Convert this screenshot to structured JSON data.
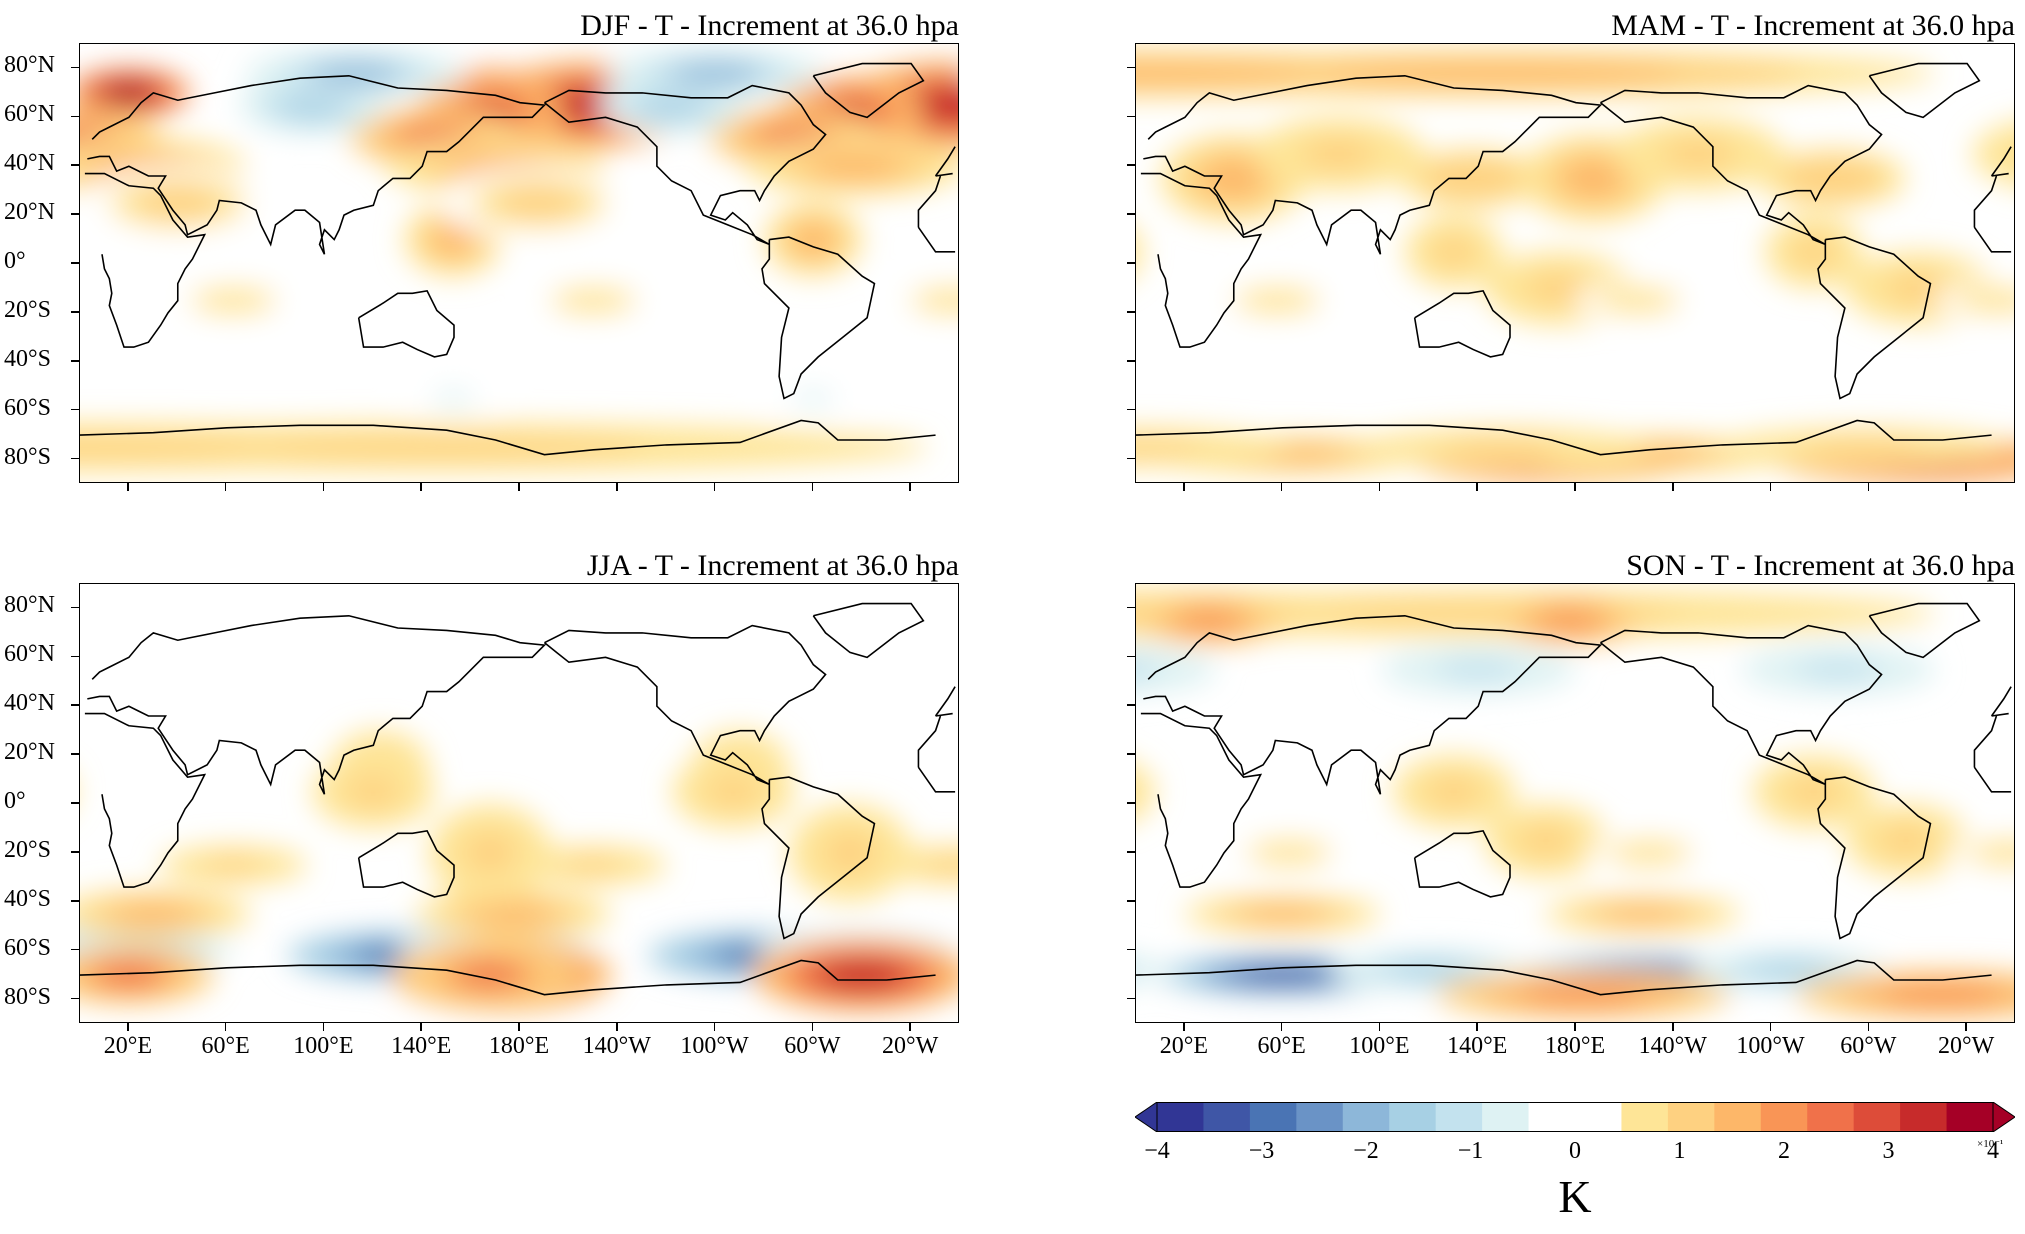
{
  "panels": [
    {
      "id": "djf",
      "title": "DJF - T - Increment at 36.0 hpa",
      "show_x": false,
      "show_y": true,
      "blobs": [
        {
          "lon": -5,
          "lat": 65,
          "rx": 45,
          "ry": 18,
          "v": 3.5
        },
        {
          "lon": 20,
          "lat": 70,
          "rx": 25,
          "ry": 10,
          "v": 4
        },
        {
          "lon": -45,
          "lat": 62,
          "rx": 30,
          "ry": 15,
          "v": 3
        },
        {
          "lon": 145,
          "lat": 52,
          "rx": 35,
          "ry": 12,
          "v": 2.5
        },
        {
          "lon": 170,
          "lat": 40,
          "rx": 45,
          "ry": 12,
          "v": 1.5
        },
        {
          "lon": 95,
          "lat": 65,
          "rx": 30,
          "ry": 12,
          "v": -1.5
        },
        {
          "lon": -100,
          "lat": 78,
          "rx": 45,
          "ry": 10,
          "v": -1.8
        },
        {
          "lon": -60,
          "lat": 10,
          "rx": 20,
          "ry": 15,
          "v": 1.5
        },
        {
          "lon": -150,
          "lat": -15,
          "rx": 25,
          "ry": 8,
          "v": 0.8
        },
        {
          "lon": 40,
          "lat": 25,
          "rx": 40,
          "ry": 15,
          "v": 0.9
        },
        {
          "lon": 0,
          "lat": -75,
          "rx": 200,
          "ry": 10,
          "v": 1
        },
        {
          "lon": -60,
          "lat": -55,
          "rx": 20,
          "ry": 8,
          "v": -0.5
        }
      ]
    },
    {
      "id": "mam",
      "title": "MAM - T - Increment at 36.0 hpa",
      "show_x": false,
      "show_y": false,
      "blobs": [
        {
          "lon": 0,
          "lat": 78,
          "rx": 180,
          "ry": 10,
          "v": 1.5
        },
        {
          "lon": -40,
          "lat": -80,
          "rx": 60,
          "ry": 10,
          "v": 3
        },
        {
          "lon": 60,
          "lat": -78,
          "rx": 60,
          "ry": 8,
          "v": 1.5
        },
        {
          "lon": 150,
          "lat": -75,
          "rx": 60,
          "ry": 8,
          "v": 1
        },
        {
          "lon": 40,
          "lat": 35,
          "rx": 30,
          "ry": 18,
          "v": 1.5
        },
        {
          "lon": -130,
          "lat": 45,
          "rx": 35,
          "ry": 15,
          "v": 1
        },
        {
          "lon": -75,
          "lat": 35,
          "rx": 30,
          "ry": 12,
          "v": 1.3
        },
        {
          "lon": -40,
          "lat": -10,
          "rx": 30,
          "ry": 15,
          "v": 1
        },
        {
          "lon": 130,
          "lat": 5,
          "rx": 20,
          "ry": 15,
          "v": 1.2
        },
        {
          "lon": -155,
          "lat": -15,
          "rx": 25,
          "ry": 8,
          "v": 0.8
        }
      ]
    },
    {
      "id": "jja",
      "title": "JJA - T - Increment at 36.0 hpa",
      "show_x": true,
      "show_y": true,
      "blobs": [
        {
          "lon": 130,
          "lat": -62,
          "rx": 45,
          "ry": 10,
          "v": -3
        },
        {
          "lon": 170,
          "lat": -60,
          "rx": 40,
          "ry": 8,
          "v": -1.8
        },
        {
          "lon": -40,
          "lat": -70,
          "rx": 45,
          "ry": 15,
          "v": 3.5
        },
        {
          "lon": 20,
          "lat": -70,
          "rx": 35,
          "ry": 12,
          "v": 2.5
        },
        {
          "lon": 30,
          "lat": -45,
          "rx": 40,
          "ry": 10,
          "v": 1.5
        },
        {
          "lon": -45,
          "lat": -20,
          "rx": 25,
          "ry": 20,
          "v": 1.2
        },
        {
          "lon": -90,
          "lat": 15,
          "rx": 20,
          "ry": 15,
          "v": 1
        },
        {
          "lon": 120,
          "lat": 5,
          "rx": 25,
          "ry": 15,
          "v": 1
        },
        {
          "lon": -150,
          "lat": -25,
          "rx": 30,
          "ry": 8,
          "v": 1
        }
      ]
    },
    {
      "id": "son",
      "title": "SON - T - Increment at 36.0 hpa",
      "show_x": true,
      "show_y": false,
      "blobs": [
        {
          "lon": 60,
          "lat": -70,
          "rx": 50,
          "ry": 8,
          "v": -3.5
        },
        {
          "lon": 120,
          "lat": -68,
          "rx": 40,
          "ry": 8,
          "v": -1.5
        },
        {
          "lon": 140,
          "lat": 55,
          "rx": 40,
          "ry": 10,
          "v": -1.2
        },
        {
          "lon": -30,
          "lat": -78,
          "rx": 60,
          "ry": 10,
          "v": 2
        },
        {
          "lon": 0,
          "lat": 78,
          "rx": 180,
          "ry": 10,
          "v": 1.2
        },
        {
          "lon": 30,
          "lat": 75,
          "rx": 30,
          "ry": 10,
          "v": 2
        },
        {
          "lon": 60,
          "lat": -45,
          "rx": 40,
          "ry": 8,
          "v": 1.5
        },
        {
          "lon": 130,
          "lat": 5,
          "rx": 25,
          "ry": 15,
          "v": 1
        },
        {
          "lon": -45,
          "lat": -15,
          "rx": 25,
          "ry": 15,
          "v": 1
        },
        {
          "lon": -150,
          "lat": -20,
          "rx": 25,
          "ry": 8,
          "v": 0.8
        }
      ]
    }
  ],
  "y_ticks": [
    "80°N",
    "60°N",
    "40°N",
    "20°N",
    "0°",
    "20°S",
    "40°S",
    "60°S",
    "80°S"
  ],
  "y_tick_lats": [
    80,
    60,
    40,
    20,
    0,
    -20,
    -40,
    -60,
    -80
  ],
  "x_ticks": [
    "20°E",
    "60°E",
    "100°E",
    "140°E",
    "180°E",
    "140°W",
    "100°W",
    "60°W",
    "20°W"
  ],
  "x_tick_lons": [
    20,
    60,
    100,
    140,
    180,
    220,
    260,
    300,
    340
  ],
  "colorbar": {
    "ticks": [
      "−4",
      "−3",
      "−2",
      "−1",
      "0",
      "1",
      "2",
      "3",
      "4"
    ],
    "unit": "K",
    "scale": "×10⁻¹",
    "min": -4,
    "max": 4,
    "colors": [
      "#313695",
      "#3f56a6",
      "#4a74b4",
      "#6a93c6",
      "#8db7d9",
      "#a7d0e4",
      "#c3e2ee",
      "#def2f3",
      "#ffffff",
      "#ffffff",
      "#fee597",
      "#fed181",
      "#fdb769",
      "#f99556",
      "#f0714a",
      "#dd4c39",
      "#c72b2b",
      "#a50026"
    ]
  }
}
